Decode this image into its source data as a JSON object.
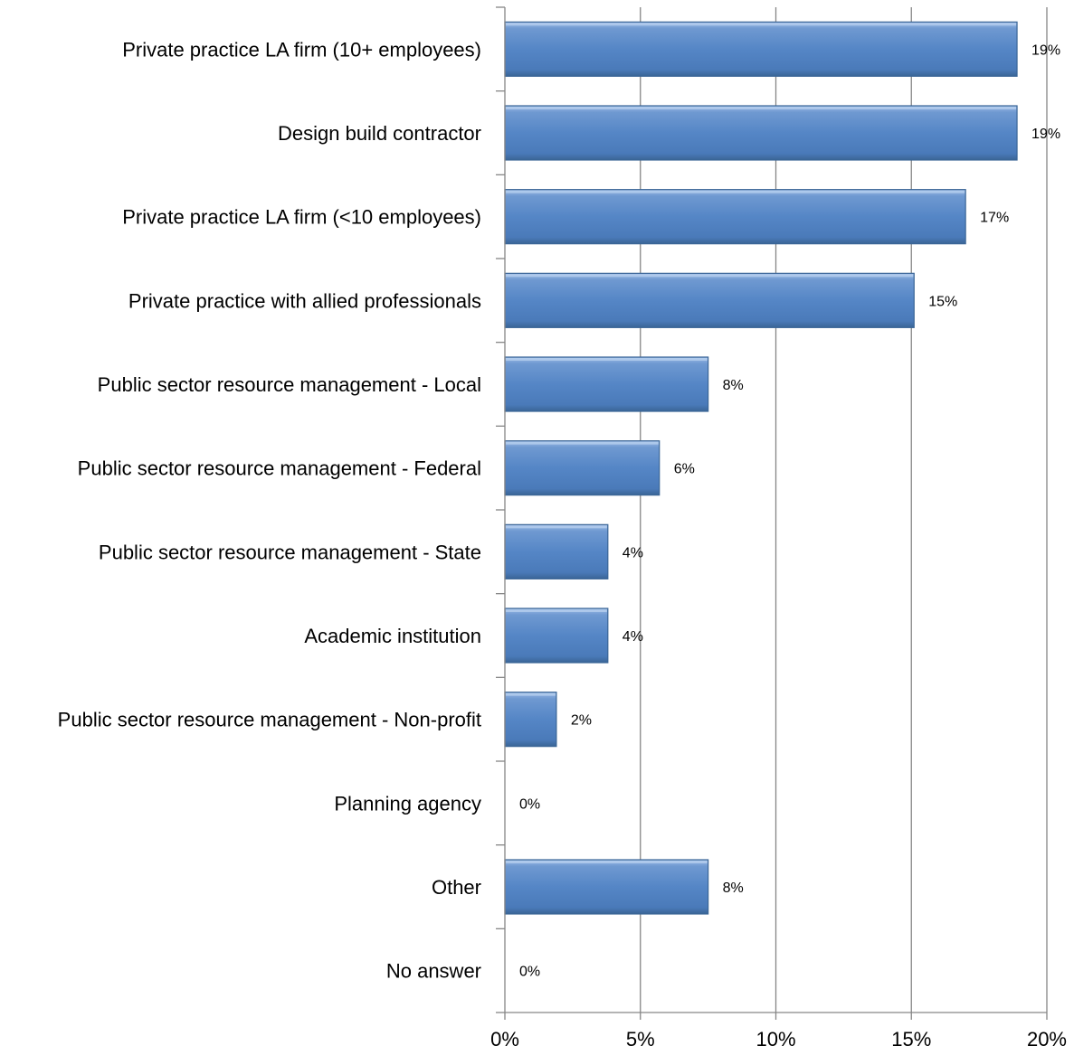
{
  "chart_data": {
    "type": "bar",
    "orientation": "horizontal",
    "title": "",
    "xlabel": "",
    "ylabel": "",
    "categories": [
      "Private practice LA firm (10+ employees)",
      "Design build contractor",
      "Private practice LA firm (<10 employees)",
      "Private practice with allied professionals",
      "Public sector resource management - Local",
      "Public sector resource management - Federal",
      "Public sector resource management - State",
      "Academic institution",
      "Public sector resource management - Non-profit",
      "Planning agency",
      "Other",
      "No answer"
    ],
    "values": [
      18.9,
      18.9,
      17.0,
      15.1,
      7.5,
      5.7,
      3.8,
      3.8,
      1.9,
      0,
      7.5,
      0
    ],
    "data_labels": [
      "19%",
      "19%",
      "17%",
      "15%",
      "8%",
      "6%",
      "4%",
      "4%",
      "2%",
      "0%",
      "8%",
      "0%"
    ],
    "xlim": [
      0,
      20
    ],
    "x_ticks": [
      0,
      5,
      10,
      15,
      20
    ],
    "x_tick_labels": [
      "0%",
      "5%",
      "10%",
      "15%",
      "20%"
    ],
    "grid": "vertical",
    "legend": "none",
    "colors": {
      "bar_fill": "#4f81bd",
      "bar_highlight": "#8fb3e0",
      "bar_border": "#3a6596",
      "gridline": "#868686",
      "axis": "#868686"
    }
  }
}
